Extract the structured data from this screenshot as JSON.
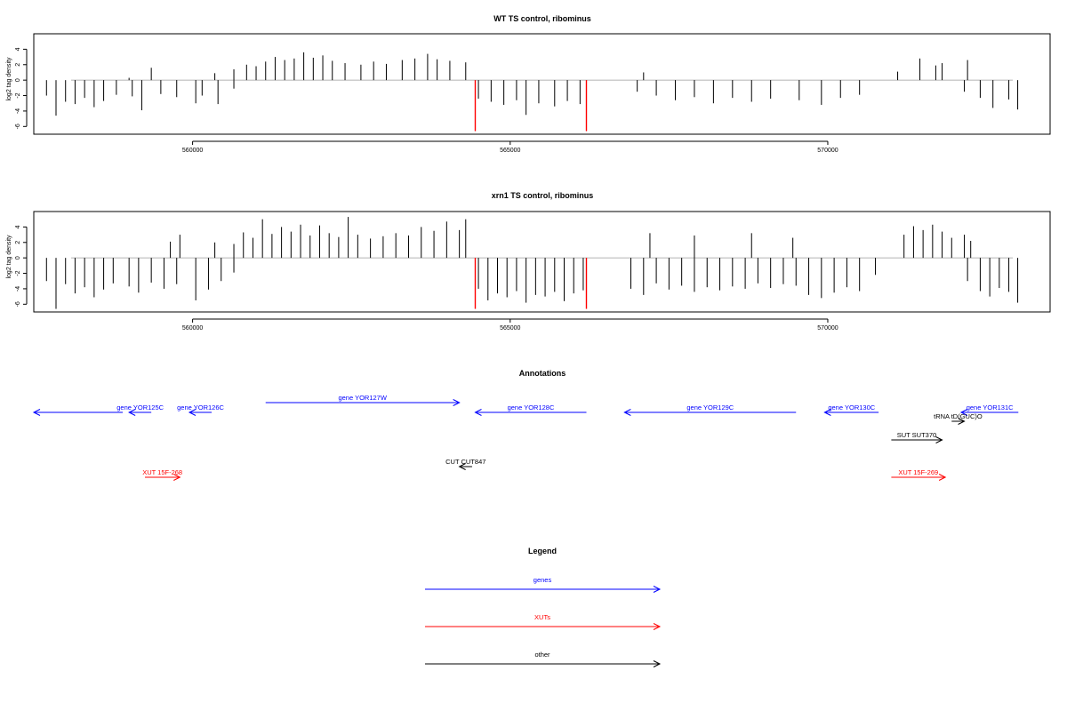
{
  "colors": {
    "bar": "#000000",
    "highlight": "#ff0000",
    "gene": "#0000ff",
    "xut": "#ff0000",
    "other": "#000000",
    "axis": "#000000",
    "zero": "#999999"
  },
  "chart_data": [
    {
      "type": "bar",
      "title": "WT TS control, ribominus",
      "ylabel": "log2 tag density",
      "xlim": [
        557500,
        573500
      ],
      "ylim": [
        -7,
        6
      ],
      "yticks": [
        -6,
        -4,
        -2,
        0,
        2,
        4
      ],
      "ytick_labels": [
        "-6",
        "-4",
        "-2",
        "0",
        "2",
        "4"
      ],
      "xticks": [
        560000,
        565000,
        570000
      ],
      "xtick_labels": [
        "560000",
        "565000",
        "570000"
      ],
      "grid": false,
      "series": [
        {
          "strand": "plus",
          "values": [
            [
              559000,
              0.3
            ],
            [
              559350,
              1.6
            ],
            [
              560350,
              0.9
            ],
            [
              560650,
              1.4
            ],
            [
              560850,
              2.0
            ],
            [
              561000,
              1.8
            ],
            [
              561150,
              2.4
            ],
            [
              561300,
              3.0
            ],
            [
              561450,
              2.6
            ],
            [
              561600,
              2.8
            ],
            [
              561750,
              3.6
            ],
            [
              561900,
              2.9
            ],
            [
              562050,
              3.2
            ],
            [
              562200,
              2.5
            ],
            [
              562400,
              2.2
            ],
            [
              562650,
              2.0
            ],
            [
              562850,
              2.4
            ],
            [
              563050,
              2.1
            ],
            [
              563300,
              2.6
            ],
            [
              563500,
              2.8
            ],
            [
              563700,
              3.4
            ],
            [
              563850,
              2.7
            ],
            [
              564050,
              2.5
            ],
            [
              564300,
              2.3
            ],
            [
              567100,
              1.0
            ],
            [
              571100,
              1.1
            ],
            [
              571450,
              2.8
            ],
            [
              571700,
              1.9
            ],
            [
              571800,
              2.2
            ],
            [
              572200,
              2.6
            ]
          ]
        },
        {
          "strand": "minus",
          "values": [
            [
              557700,
              -2.0
            ],
            [
              557850,
              -4.6
            ],
            [
              558000,
              -2.8
            ],
            [
              558150,
              -3.1
            ],
            [
              558300,
              -2.3
            ],
            [
              558450,
              -3.5
            ],
            [
              558600,
              -2.7
            ],
            [
              558800,
              -1.9
            ],
            [
              559050,
              -2.1
            ],
            [
              559200,
              -3.9
            ],
            [
              559500,
              -1.8
            ],
            [
              559750,
              -2.2
            ],
            [
              560050,
              -3.0
            ],
            [
              560150,
              -2.0
            ],
            [
              560400,
              -3.1
            ],
            [
              560650,
              -1.1
            ],
            [
              564500,
              -2.4
            ],
            [
              564700,
              -2.8
            ],
            [
              564900,
              -3.2
            ],
            [
              565100,
              -2.6
            ],
            [
              565250,
              -4.5
            ],
            [
              565450,
              -3.0
            ],
            [
              565700,
              -3.4
            ],
            [
              565900,
              -2.7
            ],
            [
              566100,
              -3.1
            ],
            [
              567000,
              -1.5
            ],
            [
              567300,
              -2.0
            ],
            [
              567600,
              -2.6
            ],
            [
              567900,
              -2.2
            ],
            [
              568200,
              -3.0
            ],
            [
              568500,
              -2.3
            ],
            [
              568800,
              -2.8
            ],
            [
              569100,
              -2.4
            ],
            [
              569550,
              -2.6
            ],
            [
              569900,
              -3.2
            ],
            [
              570200,
              -2.3
            ],
            [
              570500,
              -1.9
            ],
            [
              572150,
              -1.5
            ],
            [
              572400,
              -2.3
            ],
            [
              572600,
              -3.6
            ],
            [
              572850,
              -2.5
            ],
            [
              572990,
              -3.8
            ]
          ]
        },
        {
          "strand": "highlight",
          "values": [
            [
              564450,
              -6.6
            ],
            [
              566200,
              -6.6
            ]
          ]
        }
      ]
    },
    {
      "type": "bar",
      "title": "xrn1 TS control, ribominus",
      "ylabel": "log2 tag density",
      "xlim": [
        557500,
        573500
      ],
      "ylim": [
        -7,
        6
      ],
      "yticks": [
        -6,
        -4,
        -2,
        0,
        2,
        4
      ],
      "ytick_labels": [
        "-6",
        "-4",
        "-2",
        "0",
        "2",
        "4"
      ],
      "xticks": [
        560000,
        565000,
        570000
      ],
      "xtick_labels": [
        "560000",
        "565000",
        "570000"
      ],
      "grid": false,
      "series": [
        {
          "strand": "plus",
          "values": [
            [
              559650,
              2.1
            ],
            [
              559800,
              3.0
            ],
            [
              560350,
              2.0
            ],
            [
              560650,
              1.8
            ],
            [
              560800,
              3.3
            ],
            [
              560950,
              2.6
            ],
            [
              561100,
              5.0
            ],
            [
              561250,
              3.1
            ],
            [
              561400,
              4.0
            ],
            [
              561550,
              3.4
            ],
            [
              561700,
              4.3
            ],
            [
              561850,
              2.9
            ],
            [
              562000,
              4.2
            ],
            [
              562150,
              3.2
            ],
            [
              562300,
              2.7
            ],
            [
              562450,
              5.3
            ],
            [
              562600,
              3.0
            ],
            [
              562800,
              2.5
            ],
            [
              563000,
              2.8
            ],
            [
              563200,
              3.2
            ],
            [
              563400,
              2.9
            ],
            [
              563600,
              4.0
            ],
            [
              563800,
              3.5
            ],
            [
              564000,
              4.7
            ],
            [
              564200,
              3.6
            ],
            [
              564300,
              5.0
            ],
            [
              567200,
              3.2
            ],
            [
              567900,
              2.9
            ],
            [
              568800,
              3.2
            ],
            [
              569450,
              2.6
            ],
            [
              571200,
              3.0
            ],
            [
              571350,
              4.1
            ],
            [
              571500,
              3.6
            ],
            [
              571650,
              4.3
            ],
            [
              571800,
              3.4
            ],
            [
              571950,
              2.6
            ],
            [
              572150,
              3.0
            ],
            [
              572250,
              2.2
            ]
          ]
        },
        {
          "strand": "minus",
          "values": [
            [
              557700,
              -3.0
            ],
            [
              557850,
              -6.6
            ],
            [
              558000,
              -3.4
            ],
            [
              558150,
              -4.6
            ],
            [
              558300,
              -3.8
            ],
            [
              558450,
              -5.1
            ],
            [
              558600,
              -4.1
            ],
            [
              558750,
              -3.3
            ],
            [
              559000,
              -3.7
            ],
            [
              559150,
              -4.5
            ],
            [
              559350,
              -3.2
            ],
            [
              559550,
              -4.0
            ],
            [
              559750,
              -3.4
            ],
            [
              560050,
              -5.5
            ],
            [
              560250,
              -4.1
            ],
            [
              560450,
              -3.0
            ],
            [
              560650,
              -1.9
            ],
            [
              564500,
              -4.0
            ],
            [
              564650,
              -5.5
            ],
            [
              564800,
              -4.6
            ],
            [
              564950,
              -5.1
            ],
            [
              565100,
              -4.3
            ],
            [
              565250,
              -5.8
            ],
            [
              565400,
              -4.8
            ],
            [
              565550,
              -5.0
            ],
            [
              565700,
              -4.4
            ],
            [
              565850,
              -5.6
            ],
            [
              566000,
              -4.6
            ],
            [
              566150,
              -4.2
            ],
            [
              566900,
              -4.0
            ],
            [
              567100,
              -4.8
            ],
            [
              567300,
              -3.3
            ],
            [
              567500,
              -4.1
            ],
            [
              567700,
              -3.6
            ],
            [
              567900,
              -4.4
            ],
            [
              568100,
              -3.8
            ],
            [
              568300,
              -4.2
            ],
            [
              568500,
              -3.7
            ],
            [
              568700,
              -4.0
            ],
            [
              568900,
              -3.3
            ],
            [
              569100,
              -3.9
            ],
            [
              569300,
              -3.4
            ],
            [
              569500,
              -3.6
            ],
            [
              569700,
              -4.8
            ],
            [
              569900,
              -5.2
            ],
            [
              570100,
              -4.5
            ],
            [
              570300,
              -3.8
            ],
            [
              570500,
              -4.3
            ],
            [
              570750,
              -2.2
            ],
            [
              572200,
              -3.0
            ],
            [
              572400,
              -4.3
            ],
            [
              572550,
              -5.0
            ],
            [
              572700,
              -3.9
            ],
            [
              572850,
              -4.4
            ],
            [
              572990,
              -5.8
            ]
          ]
        },
        {
          "strand": "highlight",
          "values": [
            [
              564450,
              -6.6
            ],
            [
              566200,
              -6.6
            ]
          ]
        }
      ]
    }
  ],
  "annotations": {
    "title": "Annotations",
    "items": [
      {
        "label": "",
        "kind": "gene",
        "from": 558900,
        "to": 557500,
        "row": 1
      },
      {
        "label": "gene YOR125C",
        "kind": "gene",
        "from": 559350,
        "to": 559000,
        "row": 1
      },
      {
        "label": "gene YOR126C",
        "kind": "gene",
        "from": 560300,
        "to": 559950,
        "row": 1
      },
      {
        "label": "gene YOR127W",
        "kind": "gene",
        "from": 561150,
        "to": 564200,
        "row": 0
      },
      {
        "label": "gene YOR128C",
        "kind": "gene",
        "from": 566200,
        "to": 564450,
        "row": 1
      },
      {
        "label": "gene YOR129C",
        "kind": "gene",
        "from": 569500,
        "to": 566800,
        "row": 1
      },
      {
        "label": "gene YOR130C",
        "kind": "gene",
        "from": 570800,
        "to": 569950,
        "row": 1
      },
      {
        "label": "gene YOR131C",
        "kind": "gene",
        "from": 573000,
        "to": 572100,
        "row": 1
      },
      {
        "label": "tRNA tD(GUC)O",
        "kind": "other",
        "from": 571950,
        "to": 572150,
        "row": 2
      },
      {
        "label": "SUT SUT370",
        "kind": "other",
        "from": 571000,
        "to": 571800,
        "row": 3
      },
      {
        "label": "CUT CUT847",
        "kind": "other",
        "from": 564400,
        "to": 564200,
        "row": 4
      },
      {
        "label": "XUT 15F-268",
        "kind": "xut",
        "from": 559250,
        "to": 559800,
        "row": 5
      },
      {
        "label": "XUT 15F-269",
        "kind": "xut",
        "from": 571000,
        "to": 571850,
        "row": 5
      }
    ]
  },
  "legend": {
    "title": "Legend",
    "items": [
      {
        "label": "genes",
        "kind": "gene"
      },
      {
        "label": "XUTs",
        "kind": "xut"
      },
      {
        "label": "other",
        "kind": "other"
      }
    ]
  }
}
